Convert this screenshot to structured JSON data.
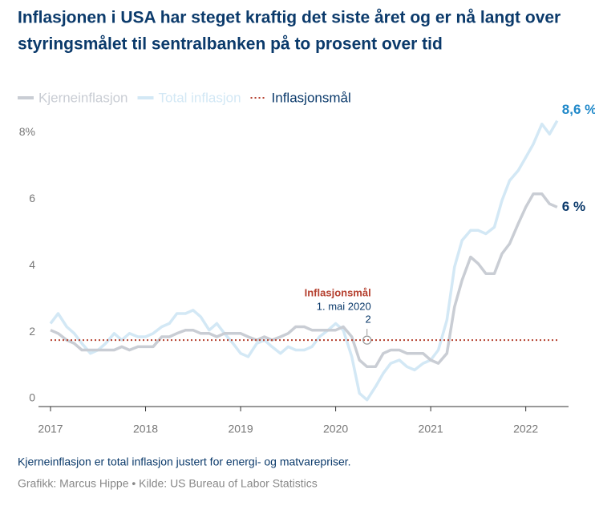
{
  "chart_data": {
    "type": "line",
    "title_lines": [
      "Inflasjonen i USA har steget kraftig det siste året og er nå langt over",
      "styringsmålet til sentralbanken på to prosent over tid"
    ],
    "x": [
      2017,
      2017.08,
      2017.17,
      2017.25,
      2017.33,
      2017.42,
      2017.5,
      2017.58,
      2017.67,
      2017.75,
      2017.83,
      2017.92,
      2018,
      2018.08,
      2018.17,
      2018.25,
      2018.33,
      2018.42,
      2018.5,
      2018.58,
      2018.67,
      2018.75,
      2018.83,
      2018.92,
      2019,
      2019.08,
      2019.17,
      2019.25,
      2019.33,
      2019.42,
      2019.5,
      2019.58,
      2019.67,
      2019.75,
      2019.83,
      2019.92,
      2020,
      2020.08,
      2020.17,
      2020.25,
      2020.33,
      2020.42,
      2020.5,
      2020.58,
      2020.67,
      2020.75,
      2020.83,
      2020.92,
      2021,
      2021.08,
      2021.17,
      2021.25,
      2021.33,
      2021.42,
      2021.5,
      2021.58,
      2021.67,
      2021.75,
      2021.83,
      2021.92,
      2022,
      2022.08,
      2022.17,
      2022.25,
      2022.33
    ],
    "series": [
      {
        "name": "Kjerneinflasjon",
        "color": "#c9cdd4",
        "end_label": "6 %",
        "end_label_color": "#0b3a6b",
        "values": [
          2.3,
          2.2,
          2.0,
          1.9,
          1.7,
          1.7,
          1.7,
          1.7,
          1.7,
          1.8,
          1.7,
          1.8,
          1.8,
          1.8,
          2.1,
          2.1,
          2.2,
          2.3,
          2.3,
          2.2,
          2.2,
          2.1,
          2.2,
          2.2,
          2.2,
          2.1,
          2.0,
          2.1,
          2.0,
          2.1,
          2.2,
          2.4,
          2.4,
          2.3,
          2.3,
          2.3,
          2.3,
          2.4,
          2.1,
          1.4,
          1.2,
          1.2,
          1.6,
          1.7,
          1.7,
          1.6,
          1.6,
          1.6,
          1.4,
          1.3,
          1.6,
          3.0,
          3.8,
          4.5,
          4.3,
          4.0,
          4.0,
          4.6,
          4.9,
          5.5,
          6.0,
          6.4,
          6.4,
          6.1,
          6.0
        ]
      },
      {
        "name": "Total inflasjon",
        "color": "#d3e8f5",
        "end_label": "8,6 %",
        "end_label_color": "#1f88c9",
        "values": [
          2.5,
          2.8,
          2.4,
          2.2,
          1.9,
          1.6,
          1.7,
          1.9,
          2.2,
          2.0,
          2.2,
          2.1,
          2.1,
          2.2,
          2.4,
          2.5,
          2.8,
          2.8,
          2.9,
          2.7,
          2.3,
          2.5,
          2.2,
          1.9,
          1.6,
          1.5,
          1.9,
          2.0,
          1.8,
          1.6,
          1.8,
          1.7,
          1.7,
          1.8,
          2.1,
          2.3,
          2.5,
          2.3,
          1.5,
          0.4,
          0.2,
          0.6,
          1.0,
          1.3,
          1.4,
          1.2,
          1.1,
          1.3,
          1.4,
          1.7,
          2.6,
          4.2,
          5.0,
          5.3,
          5.3,
          5.2,
          5.4,
          6.2,
          6.8,
          7.1,
          7.5,
          7.9,
          8.5,
          8.2,
          8.6
        ]
      }
    ],
    "target": {
      "name": "Inflasjonsmål",
      "value": 2,
      "color": "#b5402f"
    },
    "annotation": {
      "title": "Inflasjonsmål",
      "date": "1. mai 2020",
      "x": 2020.33,
      "value": 2
    },
    "xlim": [
      2017,
      2022.45
    ],
    "xticks": [
      2017,
      2018,
      2019,
      2020,
      2021,
      2022
    ],
    "ylim": [
      0,
      9
    ],
    "yticks": [
      0,
      2,
      4,
      6,
      {
        "value": 8,
        "label": "8%"
      }
    ],
    "note": "Kjerneinflasjon er total inflasjon justert for energi- og matvarepriser.",
    "source": "Grafikk: Marcus Hippe • Kilde: US Bureau of Labor Statistics"
  }
}
